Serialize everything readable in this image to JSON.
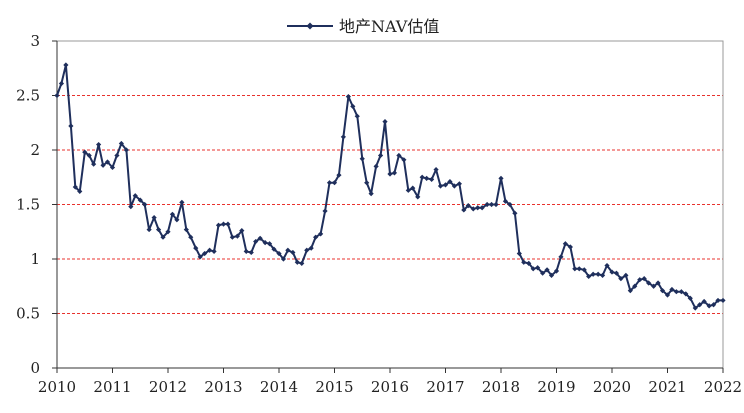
{
  "chart_data": {
    "type": "line",
    "title": "",
    "xlabel": "",
    "ylabel": "",
    "legend": {
      "placement": "top-center",
      "entries": [
        "地产NAV估值"
      ]
    },
    "grid": {
      "horizontal": true,
      "vertical": false,
      "style": "dashed"
    },
    "colors": {
      "series": "#1f2f5c",
      "grid": "#e8322e",
      "axis": "#333333"
    },
    "xlim": [
      2010,
      2022
    ],
    "ylim": [
      0,
      3
    ],
    "x_ticks": [
      2010,
      2011,
      2012,
      2013,
      2014,
      2015,
      2016,
      2017,
      2018,
      2019,
      2020,
      2021,
      2022
    ],
    "x_tick_labels": [
      "2010",
      "2011",
      "2012",
      "2013",
      "2014",
      "2015",
      "2016",
      "2017",
      "2018",
      "2019",
      "2020",
      "2021",
      "2022"
    ],
    "y_ticks": [
      0,
      0.5,
      1,
      1.5,
      2,
      2.5,
      3
    ],
    "y_tick_labels": [
      "0",
      "0.5",
      "1",
      "1.5",
      "2",
      "2.5",
      "3"
    ],
    "series": [
      {
        "name": "地产NAV估值",
        "x": [
          2010.0,
          2010.08,
          2010.16,
          2010.25,
          2010.33,
          2010.41,
          2010.5,
          2010.58,
          2010.66,
          2010.75,
          2010.83,
          2010.91,
          2011.0,
          2011.08,
          2011.16,
          2011.25,
          2011.33,
          2011.41,
          2011.5,
          2011.58,
          2011.66,
          2011.75,
          2011.83,
          2011.91,
          2012.0,
          2012.08,
          2012.16,
          2012.25,
          2012.33,
          2012.41,
          2012.5,
          2012.58,
          2012.66,
          2012.75,
          2012.83,
          2012.91,
          2013.0,
          2013.08,
          2013.16,
          2013.25,
          2013.33,
          2013.41,
          2013.5,
          2013.58,
          2013.66,
          2013.75,
          2013.83,
          2013.91,
          2014.0,
          2014.08,
          2014.16,
          2014.25,
          2014.33,
          2014.41,
          2014.5,
          2014.58,
          2014.66,
          2014.75,
          2014.83,
          2014.91,
          2015.0,
          2015.08,
          2015.16,
          2015.25,
          2015.33,
          2015.41,
          2015.5,
          2015.58,
          2015.66,
          2015.75,
          2015.83,
          2015.91,
          2016.0,
          2016.08,
          2016.16,
          2016.25,
          2016.33,
          2016.41,
          2016.5,
          2016.58,
          2016.66,
          2016.75,
          2016.83,
          2016.91,
          2017.0,
          2017.08,
          2017.16,
          2017.25,
          2017.33,
          2017.41,
          2017.5,
          2017.58,
          2017.66,
          2017.75,
          2017.83,
          2017.91,
          2018.0,
          2018.08,
          2018.16,
          2018.25,
          2018.33,
          2018.41,
          2018.5,
          2018.58,
          2018.66,
          2018.75,
          2018.83,
          2018.91,
          2019.0,
          2019.08,
          2019.16,
          2019.25,
          2019.33,
          2019.41,
          2019.5,
          2019.58,
          2019.66,
          2019.75,
          2019.83,
          2019.91,
          2020.0,
          2020.08,
          2020.16,
          2020.25,
          2020.33,
          2020.41,
          2020.5,
          2020.58,
          2020.66,
          2020.75,
          2020.83,
          2020.91,
          2021.0,
          2021.08,
          2021.16,
          2021.25,
          2021.33,
          2021.41,
          2021.5,
          2021.58,
          2021.66,
          2021.75,
          2021.83,
          2021.91,
          2022.0
        ],
        "values": [
          2.5,
          2.61,
          2.78,
          2.22,
          1.66,
          1.62,
          1.98,
          1.95,
          1.87,
          2.05,
          1.86,
          1.89,
          1.84,
          1.95,
          2.06,
          2.0,
          1.48,
          1.58,
          1.54,
          1.5,
          1.27,
          1.38,
          1.27,
          1.2,
          1.25,
          1.41,
          1.36,
          1.52,
          1.27,
          1.2,
          1.1,
          1.02,
          1.05,
          1.08,
          1.07,
          1.31,
          1.32,
          1.32,
          1.2,
          1.21,
          1.26,
          1.07,
          1.06,
          1.16,
          1.19,
          1.15,
          1.14,
          1.09,
          1.05,
          1.0,
          1.08,
          1.06,
          0.97,
          0.96,
          1.08,
          1.1,
          1.2,
          1.23,
          1.44,
          1.7,
          1.7,
          1.77,
          2.12,
          2.49,
          2.4,
          2.31,
          1.92,
          1.7,
          1.6,
          1.85,
          1.95,
          2.26,
          1.78,
          1.79,
          1.95,
          1.91,
          1.63,
          1.65,
          1.57,
          1.75,
          1.74,
          1.73,
          1.82,
          1.67,
          1.68,
          1.71,
          1.67,
          1.69,
          1.45,
          1.49,
          1.46,
          1.47,
          1.47,
          1.5,
          1.5,
          1.5,
          1.74,
          1.53,
          1.5,
          1.42,
          1.05,
          0.97,
          0.96,
          0.91,
          0.92,
          0.87,
          0.9,
          0.85,
          0.89,
          1.02,
          1.14,
          1.11,
          0.91,
          0.91,
          0.9,
          0.84,
          0.86,
          0.86,
          0.85,
          0.94,
          0.88,
          0.87,
          0.82,
          0.85,
          0.71,
          0.75,
          0.81,
          0.82,
          0.78,
          0.75,
          0.78,
          0.71,
          0.67,
          0.72,
          0.7,
          0.7,
          0.68,
          0.64,
          0.55,
          0.58,
          0.61,
          0.57,
          0.58,
          0.62,
          0.62
        ]
      }
    ]
  }
}
